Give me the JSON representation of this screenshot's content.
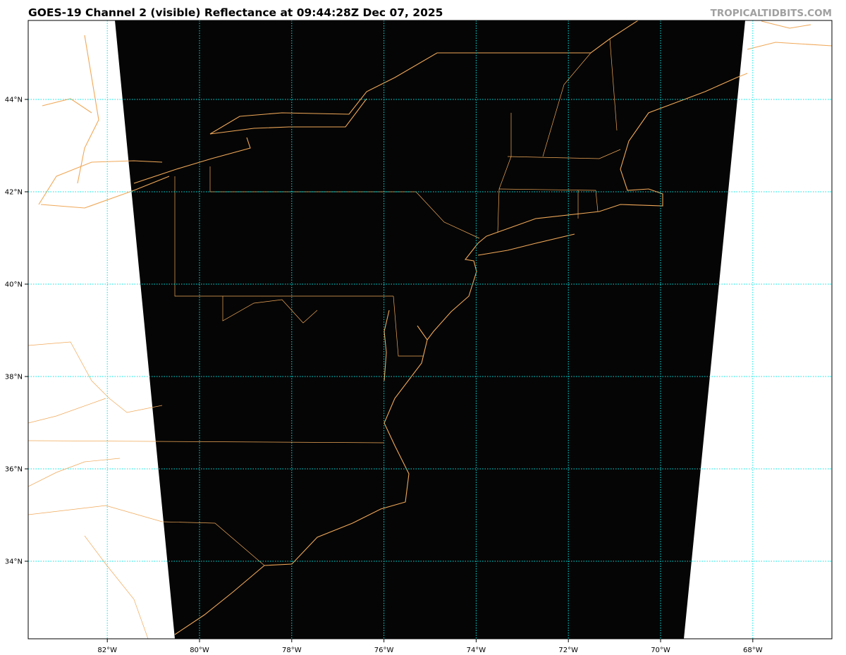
{
  "header": {
    "title": "GOES-19 Channel 2 (visible) Reflectance at 09:44:28Z Dec 07, 2025",
    "brand": "TROPICALTIDBITS.COM"
  },
  "map": {
    "product": "GOES-19 Channel 2 visible reflectance",
    "colors": {
      "image": "#050505",
      "coastline": "#f0a858",
      "grid": "#00e5e5",
      "background": "#ffffff"
    },
    "lon_ticks": [
      {
        "value": -82,
        "label": "82°W"
      },
      {
        "value": -80,
        "label": "80°W"
      },
      {
        "value": -78,
        "label": "78°W"
      },
      {
        "value": -76,
        "label": "76°W"
      },
      {
        "value": -74,
        "label": "74°W"
      },
      {
        "value": -72,
        "label": "72°W"
      },
      {
        "value": -70,
        "label": "70°W"
      },
      {
        "value": -68,
        "label": "68°W"
      }
    ],
    "lat_ticks": [
      {
        "value": 44,
        "label": "44°N"
      },
      {
        "value": 42,
        "label": "42°N"
      },
      {
        "value": 40,
        "label": "40°N"
      },
      {
        "value": 38,
        "label": "38°N"
      },
      {
        "value": 36,
        "label": "36°N"
      },
      {
        "value": 34,
        "label": "34°N"
      }
    ]
  }
}
